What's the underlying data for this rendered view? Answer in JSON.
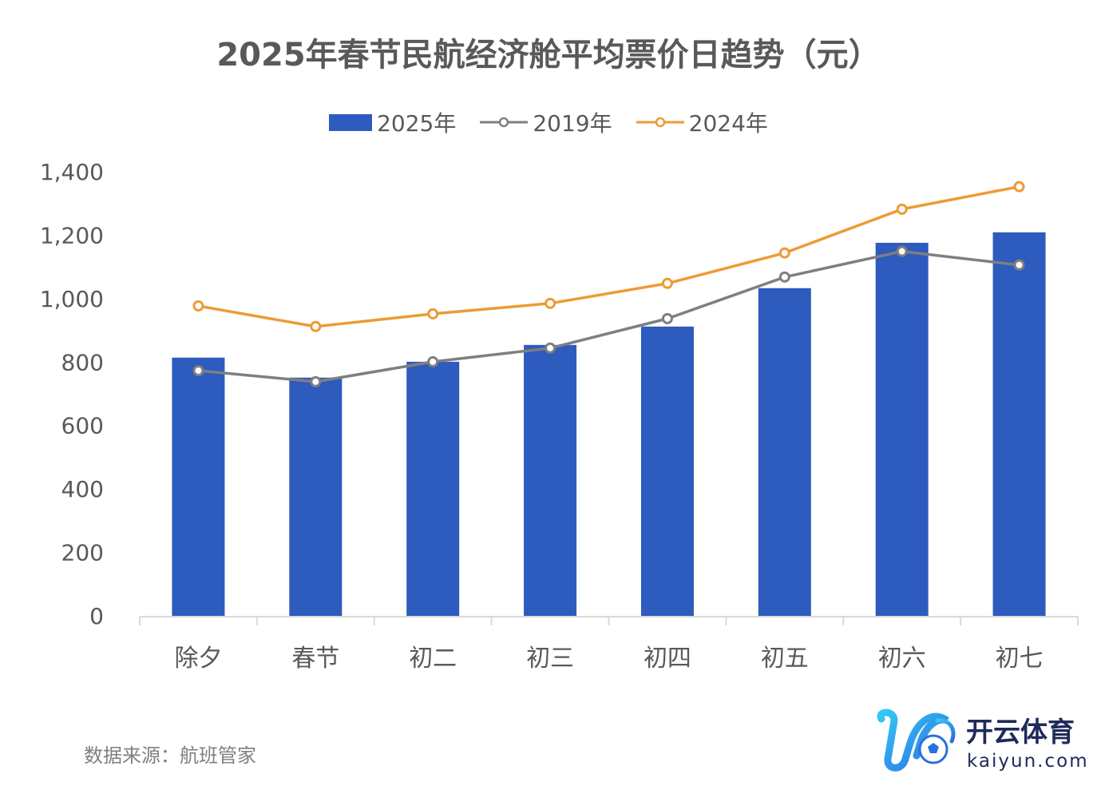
{
  "chart_data": {
    "type": "bar",
    "title": "2025年春节民航经济舱平均票价日趋势（元）",
    "xlabel": "",
    "ylabel": "",
    "ylim": [
      0,
      1400
    ],
    "yticks": [
      0,
      200,
      400,
      600,
      800,
      1000,
      1200,
      1400
    ],
    "ytick_labels": [
      "0",
      "200",
      "400",
      "600",
      "800",
      "1,000",
      "1,200",
      "1,400"
    ],
    "grid": false,
    "legend_position": "top-center",
    "categories": [
      "除夕",
      "春节",
      "初二",
      "初三",
      "初四",
      "初五",
      "初六",
      "初七"
    ],
    "series": [
      {
        "name": "2025年",
        "type": "bar",
        "color": "#2D5BBE",
        "values": [
          814,
          751,
          801,
          854,
          912,
          1033,
          1176,
          1209
        ]
      },
      {
        "name": "2019年",
        "type": "line",
        "color": "#7F7F7F",
        "values": [
          773,
          738,
          801,
          844,
          937,
          1068,
          1149,
          1106
        ]
      },
      {
        "name": "2024年",
        "type": "line",
        "color": "#ED9B33",
        "values": [
          977,
          912,
          952,
          985,
          1048,
          1144,
          1282,
          1353
        ]
      }
    ]
  },
  "source": "数据来源：航班管家",
  "watermark": {
    "brand_cn": "开云体育",
    "brand_en": "kaiyun.com"
  }
}
